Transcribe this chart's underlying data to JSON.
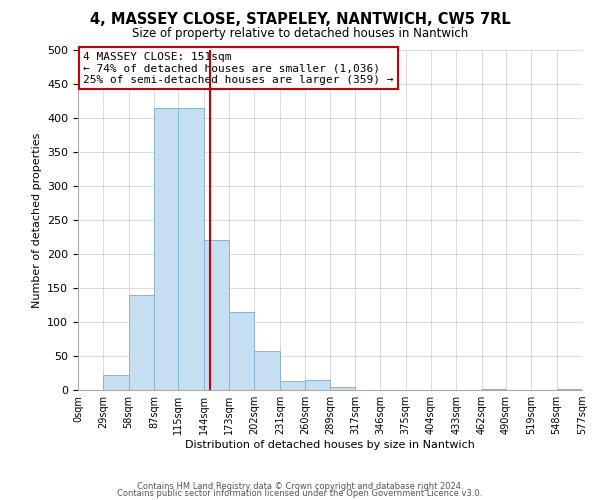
{
  "title": "4, MASSEY CLOSE, STAPELEY, NANTWICH, CW5 7RL",
  "subtitle": "Size of property relative to detached houses in Nantwich",
  "xlabel": "Distribution of detached houses by size in Nantwich",
  "ylabel": "Number of detached properties",
  "bin_edges": [
    0,
    29,
    58,
    87,
    115,
    144,
    173,
    202,
    231,
    260,
    289,
    317,
    346,
    375,
    404,
    433,
    462,
    490,
    519,
    548,
    577
  ],
  "counts": [
    0,
    22,
    140,
    415,
    415,
    220,
    115,
    57,
    13,
    15,
    5,
    0,
    0,
    0,
    0,
    0,
    1,
    0,
    0,
    1
  ],
  "bar_color": "#c6dff0",
  "bar_edge_color": "#8ab4d4",
  "property_line_x": 151,
  "property_line_color": "#cc0000",
  "annotation_line1": "4 MASSEY CLOSE: 151sqm",
  "annotation_line2": "← 74% of detached houses are smaller (1,036)",
  "annotation_line3": "25% of semi-detached houses are larger (359) →",
  "ylim": [
    0,
    500
  ],
  "xlim": [
    0,
    577
  ],
  "tick_labels": [
    "0sqm",
    "29sqm",
    "58sqm",
    "87sqm",
    "115sqm",
    "144sqm",
    "173sqm",
    "202sqm",
    "231sqm",
    "260sqm",
    "289sqm",
    "317sqm",
    "346sqm",
    "375sqm",
    "404sqm",
    "433sqm",
    "462sqm",
    "490sqm",
    "519sqm",
    "548sqm",
    "577sqm"
  ],
  "footer_line1": "Contains HM Land Registry data © Crown copyright and database right 2024.",
  "footer_line2": "Contains public sector information licensed under the Open Government Licence v3.0.",
  "background_color": "#ffffff",
  "grid_color": "#cccccc"
}
